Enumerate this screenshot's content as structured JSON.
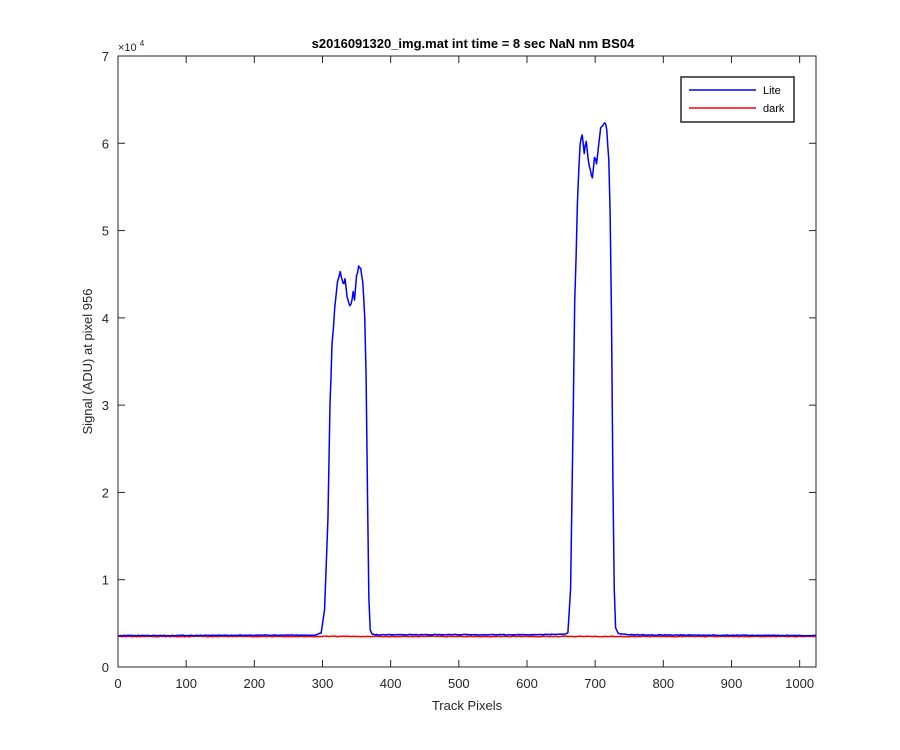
{
  "chart_data": {
    "type": "line",
    "title": "s2016091320_img.mat int time = 8 sec  NaN nm BS04",
    "xlabel": "Track Pixels",
    "ylabel": "Signal (ADU) at pixel 956",
    "xlim": [
      0,
      1024
    ],
    "ylim": [
      0,
      70000
    ],
    "x_ticks": [
      "0",
      "100",
      "200",
      "300",
      "400",
      "500",
      "600",
      "700",
      "800",
      "900",
      "1000"
    ],
    "y_ticks": [
      "0",
      "1",
      "2",
      "3",
      "4",
      "5",
      "6",
      "7"
    ],
    "y_exponent": {
      "base": "×10",
      "power": "4"
    },
    "legend_position": "top-right",
    "grid": false,
    "series": [
      {
        "name": "Lite",
        "color": "#0000ff",
        "points": [
          [
            0,
            3600
          ],
          [
            290,
            3650
          ],
          [
            298,
            3900
          ],
          [
            303,
            6500
          ],
          [
            308,
            17000
          ],
          [
            311,
            30000
          ],
          [
            314,
            37000
          ],
          [
            318,
            41000
          ],
          [
            322,
            44000
          ],
          [
            326,
            45200
          ],
          [
            330,
            43800
          ],
          [
            333,
            44300
          ],
          [
            336,
            42500
          ],
          [
            340,
            41200
          ],
          [
            342,
            41700
          ],
          [
            345,
            43000
          ],
          [
            347,
            42200
          ],
          [
            350,
            44800
          ],
          [
            353,
            46000
          ],
          [
            356,
            45500
          ],
          [
            359,
            44200
          ],
          [
            362,
            40000
          ],
          [
            364,
            33000
          ],
          [
            366,
            20000
          ],
          [
            368,
            8000
          ],
          [
            370,
            4200
          ],
          [
            373,
            3750
          ],
          [
            380,
            3700
          ],
          [
            500,
            3700
          ],
          [
            600,
            3700
          ],
          [
            655,
            3750
          ],
          [
            660,
            3900
          ],
          [
            664,
            9000
          ],
          [
            668,
            30000
          ],
          [
            670,
            42000
          ],
          [
            672,
            47000
          ],
          [
            674,
            53000
          ],
          [
            676,
            57000
          ],
          [
            678,
            60000
          ],
          [
            681,
            61000
          ],
          [
            684,
            59000
          ],
          [
            687,
            60300
          ],
          [
            690,
            58000
          ],
          [
            693,
            57000
          ],
          [
            696,
            55800
          ],
          [
            699,
            58500
          ],
          [
            702,
            57500
          ],
          [
            705,
            59500
          ],
          [
            708,
            61500
          ],
          [
            711,
            62200
          ],
          [
            714,
            62500
          ],
          [
            717,
            61800
          ],
          [
            720,
            58000
          ],
          [
            722,
            52000
          ],
          [
            724,
            40000
          ],
          [
            726,
            22000
          ],
          [
            728,
            9000
          ],
          [
            730,
            4500
          ],
          [
            734,
            3800
          ],
          [
            750,
            3700
          ],
          [
            850,
            3650
          ],
          [
            1024,
            3600
          ]
        ]
      },
      {
        "name": "dark",
        "color": "#ff0000",
        "points": [
          [
            0,
            3500
          ],
          [
            1024,
            3500
          ]
        ]
      }
    ]
  }
}
